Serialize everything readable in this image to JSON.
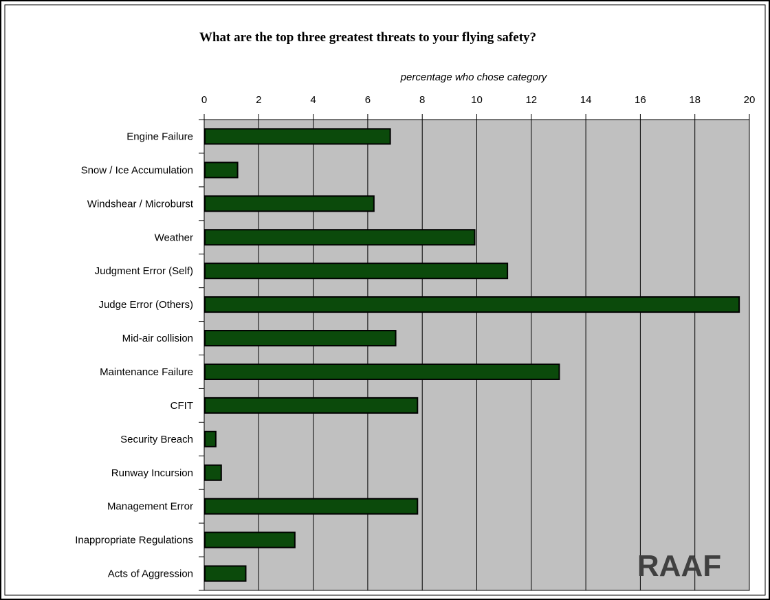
{
  "chart_data": {
    "type": "bar",
    "orientation": "horizontal",
    "title": "What are the top three greatest threats to your flying safety?",
    "xlabel": "percentage who chose category",
    "ylabel": "",
    "xlim": [
      0,
      20
    ],
    "x_ticks": [
      "0",
      "2",
      "4",
      "6",
      "8",
      "10",
      "12",
      "14",
      "16",
      "18",
      "20"
    ],
    "x_axis_position": "top",
    "grid": true,
    "categories": [
      "Engine Failure",
      "Snow / Ice Accumulation",
      "Windshear / Microburst",
      "Weather",
      "Judgment Error (Self)",
      "Judge Error (Others)",
      "Mid-air collision",
      "Maintenance Failure",
      "CFIT",
      "Security Breach",
      "Runway Incursion",
      "Management Error",
      "Inappropriate Regulations",
      "Acts of Aggression"
    ],
    "values": [
      6.8,
      1.2,
      6.2,
      9.9,
      11.1,
      19.6,
      7.0,
      13.0,
      7.8,
      0.4,
      0.6,
      7.8,
      3.3,
      1.5
    ],
    "colors": {
      "bar": "#0b4a0b",
      "bar_stroke": "#000000",
      "plot_bg": "#c0c0c0",
      "grid": "#000000"
    },
    "watermark": "RAAF"
  }
}
